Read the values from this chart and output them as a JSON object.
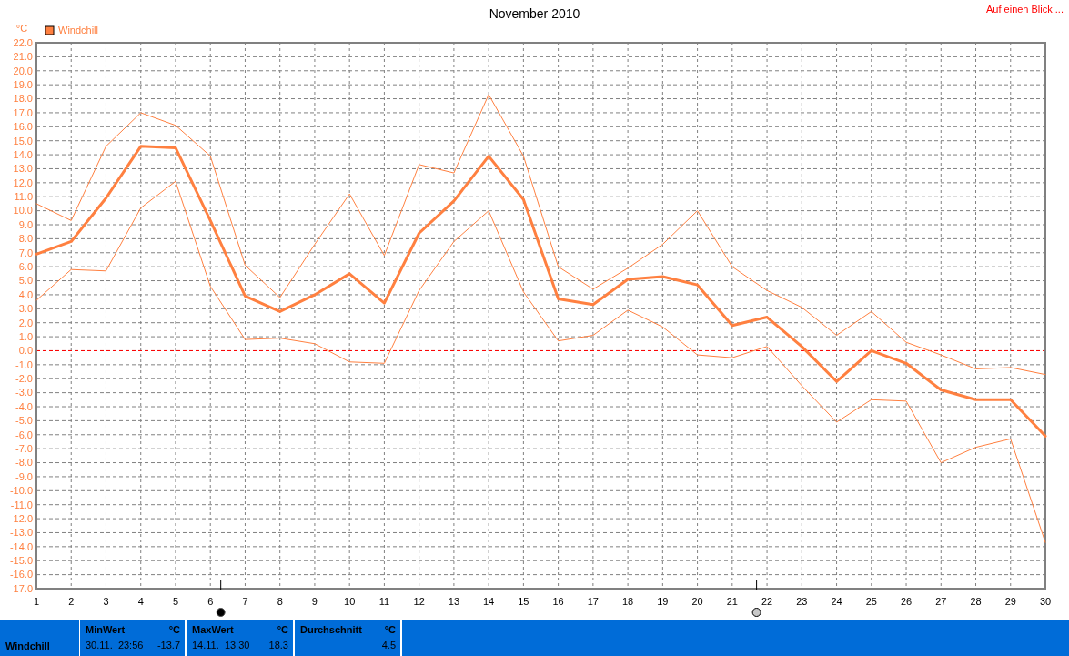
{
  "chart_data": {
    "type": "line",
    "title": "November 2010",
    "ylabel": "°C",
    "x": [
      1,
      2,
      3,
      4,
      5,
      6,
      7,
      8,
      9,
      10,
      11,
      12,
      13,
      14,
      15,
      16,
      17,
      18,
      19,
      20,
      21,
      22,
      23,
      24,
      25,
      26,
      27,
      28,
      29,
      30
    ],
    "xlim": [
      1,
      30
    ],
    "xticks": [
      1,
      2,
      3,
      4,
      5,
      6,
      7,
      8,
      9,
      10,
      11,
      12,
      13,
      14,
      15,
      16,
      17,
      18,
      19,
      20,
      21,
      22,
      23,
      24,
      25,
      26,
      27,
      28,
      29,
      30
    ],
    "ylim": [
      -17,
      22
    ],
    "yticks": [
      {
        "value": -17,
        "label": "-17.0"
      },
      {
        "value": -16,
        "label": "-16.0"
      },
      {
        "value": -15,
        "label": "-15.0"
      },
      {
        "value": -14,
        "label": "-14.0"
      },
      {
        "value": -13,
        "label": "-13.0"
      },
      {
        "value": -12,
        "label": "-12.0"
      },
      {
        "value": -11,
        "label": "-11.0"
      },
      {
        "value": -10,
        "label": "-10.0"
      },
      {
        "value": -9,
        "label": "-9.0"
      },
      {
        "value": -8,
        "label": "-8.0"
      },
      {
        "value": -7,
        "label": "-7.0"
      },
      {
        "value": -6,
        "label": "-6.0"
      },
      {
        "value": -5,
        "label": "-5.0"
      },
      {
        "value": -4,
        "label": "-4.0"
      },
      {
        "value": -3,
        "label": "-3.0"
      },
      {
        "value": -2,
        "label": "-2.0"
      },
      {
        "value": -1,
        "label": "-1.0"
      },
      {
        "value": 0,
        "label": "0.0"
      },
      {
        "value": 1,
        "label": "1.0"
      },
      {
        "value": 2,
        "label": "2.0"
      },
      {
        "value": 3,
        "label": "3.0"
      },
      {
        "value": 4,
        "label": "4.0"
      },
      {
        "value": 5,
        "label": "5.0"
      },
      {
        "value": 6,
        "label": "6.0"
      },
      {
        "value": 7,
        "label": "7.0"
      },
      {
        "value": 8,
        "label": "8.0"
      },
      {
        "value": 9,
        "label": "9.0"
      },
      {
        "value": 10,
        "label": "10.0"
      },
      {
        "value": 11,
        "label": "11.0"
      },
      {
        "value": 12,
        "label": "12.0"
      },
      {
        "value": 13,
        "label": "13.0"
      },
      {
        "value": 14,
        "label": "14.0"
      },
      {
        "value": 15,
        "label": "15.0"
      },
      {
        "value": 16,
        "label": "16.0"
      },
      {
        "value": 17,
        "label": "17.0"
      },
      {
        "value": 18,
        "label": "18.0"
      },
      {
        "value": 19,
        "label": "19.0"
      },
      {
        "value": 20,
        "label": "20.0"
      },
      {
        "value": 21,
        "label": "21.0"
      },
      {
        "value": 22,
        "label": "22.0"
      }
    ],
    "series": [
      {
        "name": "Windchill",
        "color": "#ff8040",
        "values": [
          6.9,
          7.8,
          10.9,
          14.6,
          14.5,
          9.3,
          3.9,
          2.8,
          4.0,
          5.5,
          3.4,
          8.4,
          10.7,
          13.9,
          10.8,
          3.7,
          3.3,
          5.1,
          5.3,
          4.7,
          1.8,
          2.4,
          0.3,
          -2.2,
          0.0,
          -0.9,
          -2.8,
          -3.5,
          -3.5,
          -6.1
        ]
      },
      {
        "color": "#ff8040",
        "values": [
          10.5,
          9.3,
          14.6,
          17.0,
          16.1,
          13.9,
          6.1,
          3.8,
          7.6,
          11.2,
          6.8,
          13.3,
          12.7,
          18.3,
          13.9,
          6.0,
          4.4,
          5.9,
          7.6,
          10.0,
          6.0,
          4.3,
          3.1,
          1.1,
          2.8,
          0.6,
          -0.3,
          -1.3,
          -1.2,
          -1.7
        ]
      },
      {
        "color": "#ff8040",
        "values": [
          3.6,
          5.8,
          5.7,
          10.2,
          12.1,
          4.6,
          0.8,
          0.9,
          0.5,
          -0.8,
          -0.9,
          4.3,
          7.8,
          10.0,
          4.2,
          0.7,
          1.1,
          2.9,
          1.7,
          -0.3,
          -0.5,
          0.3,
          -2.5,
          -5.1,
          -3.5,
          -3.6,
          -8.0,
          -6.9,
          -6.3,
          -13.7
        ]
      }
    ],
    "ref_lines": [
      {
        "axis": "y",
        "value": 0,
        "color": "#ff0000",
        "line_style": "dashed"
      }
    ],
    "grid": true,
    "legend": "top left",
    "marker": "none",
    "line_style": "solid",
    "annotations": [
      "Auf einen Blick ...",
      "Windchill",
      "MinWert",
      "°C",
      "30.11.  23:56",
      "-13.7",
      "MaxWert",
      "°C",
      "14.11.  13:30",
      "18.3",
      "Durchschnitt",
      "°C",
      "4.5"
    ]
  }
}
